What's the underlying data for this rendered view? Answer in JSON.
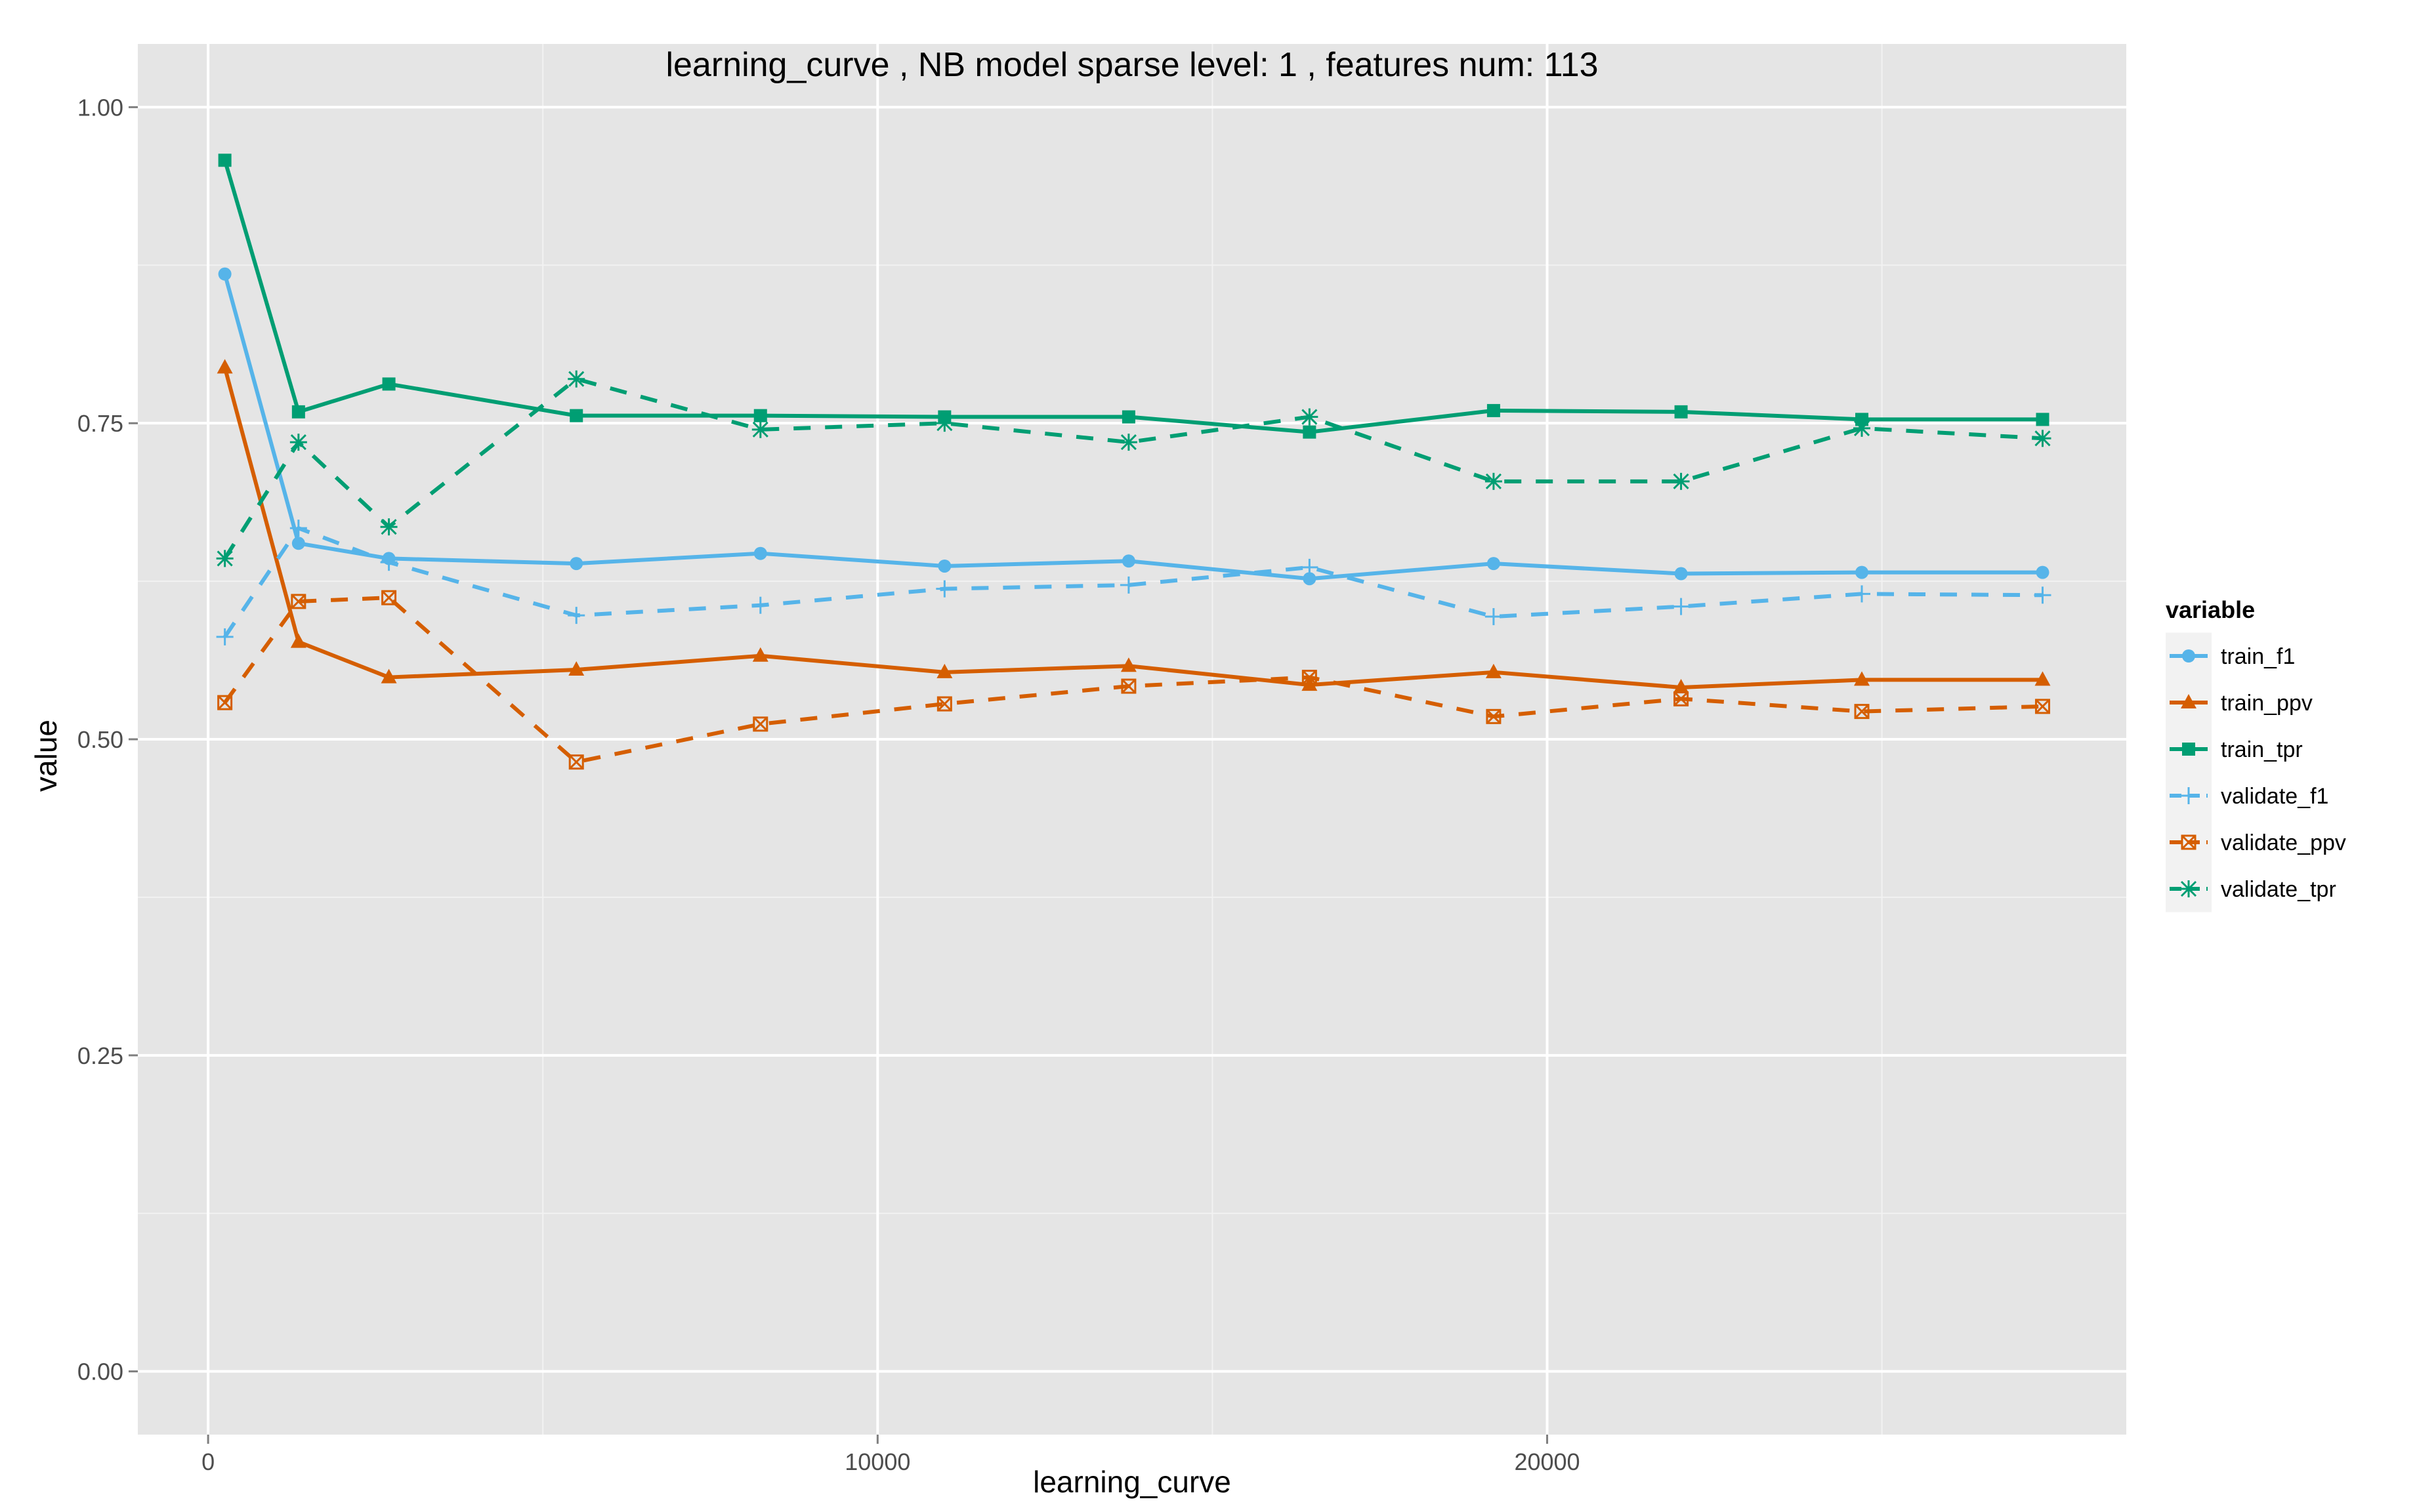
{
  "chart_data": {
    "type": "line",
    "title": "learning_curve ,  NB model sparse level: 1 , features num: 113",
    "xlabel": "learning_curve",
    "ylabel": "value",
    "xlim": [
      -1050,
      28650
    ],
    "ylim": [
      -0.05,
      1.05
    ],
    "x_ticks": [
      0,
      10000,
      20000
    ],
    "x_tick_labels": [
      "0",
      "10000",
      "20000"
    ],
    "x_minor_ticks": [
      5000,
      15000,
      25000
    ],
    "y_ticks": [
      0.0,
      0.25,
      0.5,
      0.75,
      1.0
    ],
    "y_tick_labels": [
      "0.00",
      "0.25",
      "0.50",
      "0.75",
      "1.00"
    ],
    "y_minor_ticks": [
      0.125,
      0.375,
      0.625,
      0.875
    ],
    "grid": true,
    "legend_position": "right",
    "legend_title": "variable",
    "x": [
      250,
      1350,
      2700,
      5500,
      8250,
      11000,
      13750,
      16450,
      19200,
      22000,
      24700,
      27400
    ],
    "series": [
      {
        "name": "train_f1",
        "color": "#56B4E9",
        "dash": "solid",
        "marker": "circle",
        "values": [
          0.868,
          0.655,
          0.643,
          0.639,
          0.647,
          0.637,
          0.641,
          0.627,
          0.639,
          0.631,
          0.632,
          0.632
        ]
      },
      {
        "name": "train_ppv",
        "color": "#D55E00",
        "dash": "solid",
        "marker": "triangle",
        "values": [
          0.794,
          0.577,
          0.549,
          0.555,
          0.566,
          0.553,
          0.558,
          0.543,
          0.553,
          0.541,
          0.547,
          0.547
        ]
      },
      {
        "name": "train_tpr",
        "color": "#009E73",
        "dash": "solid",
        "marker": "square",
        "values": [
          0.958,
          0.759,
          0.781,
          0.756,
          0.756,
          0.755,
          0.755,
          0.743,
          0.76,
          0.759,
          0.753,
          0.753
        ]
      },
      {
        "name": "validate_f1",
        "color": "#56B4E9",
        "dash": "dashed",
        "marker": "plus",
        "values": [
          0.581,
          0.667,
          0.64,
          0.598,
          0.606,
          0.619,
          0.622,
          0.636,
          0.597,
          0.605,
          0.615,
          0.614
        ]
      },
      {
        "name": "validate_ppv",
        "color": "#D55E00",
        "dash": "dashed",
        "marker": "boxcross",
        "values": [
          0.529,
          0.609,
          0.612,
          0.482,
          0.512,
          0.528,
          0.542,
          0.549,
          0.518,
          0.532,
          0.522,
          0.526
        ]
      },
      {
        "name": "validate_tpr",
        "color": "#009E73",
        "dash": "dashed",
        "marker": "asterisk",
        "values": [
          0.643,
          0.735,
          0.668,
          0.785,
          0.745,
          0.75,
          0.735,
          0.755,
          0.704,
          0.704,
          0.746,
          0.738
        ]
      }
    ]
  }
}
